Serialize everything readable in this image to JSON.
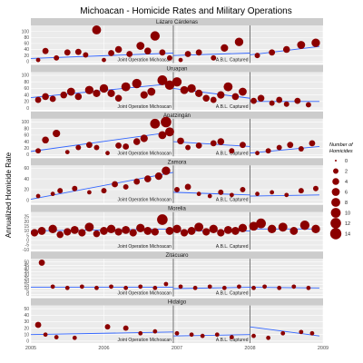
{
  "chart_data": {
    "type": "scatter",
    "title": "Michoacan - Homicide Rates and Military Operations",
    "ylabel": "Annualized Homicide Rate",
    "xlabel": "",
    "x_ticks": [
      "2005",
      "2006",
      "2007",
      "2008",
      "2009"
    ],
    "xlim": [
      2005.0,
      2009.0
    ],
    "grid": true,
    "events": [
      {
        "x": 2006.95,
        "label": "Joint Operation Michoacan"
      },
      {
        "x": 2008.0,
        "label": "A.B.L. Captured"
      }
    ],
    "legend": {
      "title": "Number of Homicides",
      "position": "right",
      "sizes": [
        0,
        2,
        4,
        6,
        8,
        10,
        12,
        14
      ]
    },
    "panels": [
      {
        "name": "Lázaro Cárdenas",
        "ylim": [
          -5,
          120
        ],
        "yticks": [
          0,
          20,
          40,
          60,
          80,
          100
        ],
        "points": [
          [
            2005.1,
            5,
            1
          ],
          [
            2005.2,
            35,
            3
          ],
          [
            2005.35,
            12,
            2
          ],
          [
            2005.5,
            30,
            3
          ],
          [
            2005.65,
            32,
            3
          ],
          [
            2005.75,
            22,
            2
          ],
          [
            2005.9,
            105,
            8
          ],
          [
            2006.0,
            5,
            1
          ],
          [
            2006.1,
            28,
            3
          ],
          [
            2006.2,
            40,
            4
          ],
          [
            2006.35,
            25,
            3
          ],
          [
            2006.5,
            52,
            6
          ],
          [
            2006.6,
            35,
            4
          ],
          [
            2006.7,
            85,
            9
          ],
          [
            2006.8,
            30,
            3
          ],
          [
            2006.9,
            12,
            2
          ],
          [
            2007.05,
            5,
            1
          ],
          [
            2007.15,
            25,
            3
          ],
          [
            2007.3,
            30,
            3
          ],
          [
            2007.5,
            12,
            2
          ],
          [
            2007.65,
            45,
            5
          ],
          [
            2007.85,
            65,
            7
          ],
          [
            2008.1,
            20,
            2
          ],
          [
            2008.3,
            30,
            3
          ],
          [
            2008.5,
            40,
            4
          ],
          [
            2008.7,
            55,
            6
          ],
          [
            2008.9,
            62,
            7
          ]
        ],
        "fits": [
          [
            2005.0,
            10,
            2006.95,
            28
          ],
          [
            2006.95,
            20,
            2008.0,
            28
          ],
          [
            2008.0,
            22,
            2008.95,
            50
          ]
        ]
      },
      {
        "name": "Uruapan",
        "ylim": [
          -5,
          110
        ],
        "yticks": [
          0,
          20,
          40,
          60,
          80,
          100
        ],
        "points": [
          [
            2005.1,
            25,
            3
          ],
          [
            2005.2,
            35,
            4
          ],
          [
            2005.3,
            28,
            3
          ],
          [
            2005.45,
            40,
            4
          ],
          [
            2005.55,
            50,
            6
          ],
          [
            2005.65,
            35,
            4
          ],
          [
            2005.8,
            55,
            7
          ],
          [
            2005.9,
            45,
            5
          ],
          [
            2006.0,
            60,
            7
          ],
          [
            2006.1,
            45,
            5
          ],
          [
            2006.2,
            30,
            4
          ],
          [
            2006.3,
            65,
            8
          ],
          [
            2006.45,
            75,
            9
          ],
          [
            2006.55,
            40,
            5
          ],
          [
            2006.65,
            50,
            6
          ],
          [
            2006.8,
            85,
            10
          ],
          [
            2006.9,
            70,
            9
          ],
          [
            2007.0,
            80,
            9
          ],
          [
            2007.1,
            55,
            6
          ],
          [
            2007.2,
            60,
            7
          ],
          [
            2007.3,
            45,
            5
          ],
          [
            2007.4,
            30,
            4
          ],
          [
            2007.5,
            25,
            3
          ],
          [
            2007.6,
            40,
            5
          ],
          [
            2007.7,
            65,
            8
          ],
          [
            2007.8,
            35,
            4
          ],
          [
            2007.9,
            50,
            6
          ],
          [
            2008.05,
            22,
            3
          ],
          [
            2008.15,
            30,
            4
          ],
          [
            2008.3,
            15,
            2
          ],
          [
            2008.4,
            25,
            3
          ],
          [
            2008.5,
            12,
            2
          ],
          [
            2008.65,
            22,
            3
          ],
          [
            2008.8,
            10,
            2
          ]
        ],
        "fits": [
          [
            2005.0,
            32,
            2006.95,
            75
          ],
          [
            2006.95,
            60,
            2008.0,
            30
          ],
          [
            2008.0,
            20,
            2008.95,
            20
          ]
        ]
      },
      {
        "name": "Apatzingán",
        "ylim": [
          -5,
          110
        ],
        "yticks": [
          0,
          20,
          40,
          60,
          80,
          100
        ],
        "points": [
          [
            2005.1,
            12,
            2
          ],
          [
            2005.2,
            45,
            4
          ],
          [
            2005.35,
            65,
            5
          ],
          [
            2005.5,
            8,
            1
          ],
          [
            2005.65,
            22,
            2
          ],
          [
            2005.8,
            30,
            3
          ],
          [
            2005.9,
            22,
            2
          ],
          [
            2006.05,
            5,
            1
          ],
          [
            2006.2,
            28,
            3
          ],
          [
            2006.3,
            25,
            3
          ],
          [
            2006.45,
            40,
            4
          ],
          [
            2006.55,
            50,
            5
          ],
          [
            2006.7,
            95,
            10
          ],
          [
            2006.8,
            60,
            6
          ],
          [
            2006.85,
            100,
            12
          ],
          [
            2006.9,
            70,
            8
          ],
          [
            2007.05,
            42,
            4
          ],
          [
            2007.15,
            22,
            2
          ],
          [
            2007.3,
            28,
            3
          ],
          [
            2007.5,
            35,
            3
          ],
          [
            2007.6,
            40,
            4
          ],
          [
            2007.75,
            12,
            2
          ],
          [
            2007.9,
            30,
            3
          ],
          [
            2008.1,
            5,
            1
          ],
          [
            2008.25,
            12,
            2
          ],
          [
            2008.4,
            22,
            2
          ],
          [
            2008.55,
            30,
            3
          ],
          [
            2008.7,
            18,
            2
          ],
          [
            2008.85,
            35,
            3
          ]
        ],
        "fits": [
          [
            2005.0,
            10,
            2006.95,
            70
          ],
          [
            2006.95,
            40,
            2008.0,
            25
          ],
          [
            2008.0,
            5,
            2008.95,
            25
          ]
        ]
      },
      {
        "name": "Zamora",
        "ylim": [
          -5,
          65
        ],
        "yticks": [
          0,
          20,
          40,
          60
        ],
        "points": [
          [
            2005.1,
            8,
            1
          ],
          [
            2005.3,
            12,
            1
          ],
          [
            2005.4,
            18,
            2
          ],
          [
            2005.6,
            22,
            2
          ],
          [
            2005.8,
            15,
            1
          ],
          [
            2006.0,
            18,
            2
          ],
          [
            2006.15,
            30,
            3
          ],
          [
            2006.3,
            25,
            2
          ],
          [
            2006.45,
            35,
            3
          ],
          [
            2006.6,
            40,
            4
          ],
          [
            2006.75,
            45,
            5
          ],
          [
            2006.85,
            55,
            7
          ],
          [
            2007.0,
            20,
            2
          ],
          [
            2007.15,
            25,
            3
          ],
          [
            2007.3,
            12,
            1
          ],
          [
            2007.45,
            8,
            1
          ],
          [
            2007.6,
            15,
            2
          ],
          [
            2007.75,
            10,
            1
          ],
          [
            2007.9,
            20,
            2
          ],
          [
            2008.1,
            12,
            1
          ],
          [
            2008.3,
            15,
            1
          ],
          [
            2008.5,
            10,
            1
          ],
          [
            2008.7,
            18,
            2
          ],
          [
            2008.9,
            22,
            2
          ]
        ],
        "fits": [
          [
            2005.0,
            2,
            2006.95,
            52
          ],
          [
            2006.95,
            15,
            2008.0,
            10
          ],
          [
            2008.0,
            8,
            2008.95,
            10
          ]
        ]
      },
      {
        "name": "Morelia",
        "ylim": [
          -10,
          30
        ],
        "yticks": [
          -10,
          -5,
          0,
          5,
          10,
          15,
          20,
          25
        ],
        "points": [
          [
            2005.05,
            8,
            5
          ],
          [
            2005.15,
            10,
            6
          ],
          [
            2005.3,
            12,
            7
          ],
          [
            2005.4,
            6,
            4
          ],
          [
            2005.5,
            9,
            5
          ],
          [
            2005.6,
            11,
            6
          ],
          [
            2005.7,
            8,
            5
          ],
          [
            2005.8,
            14,
            8
          ],
          [
            2005.9,
            7,
            4
          ],
          [
            2006.0,
            10,
            6
          ],
          [
            2006.1,
            12,
            7
          ],
          [
            2006.2,
            9,
            5
          ],
          [
            2006.3,
            11,
            6
          ],
          [
            2006.4,
            8,
            5
          ],
          [
            2006.5,
            13,
            7
          ],
          [
            2006.6,
            10,
            6
          ],
          [
            2006.7,
            9,
            5
          ],
          [
            2006.8,
            22,
            12
          ],
          [
            2006.9,
            10,
            6
          ],
          [
            2007.0,
            12,
            7
          ],
          [
            2007.1,
            8,
            5
          ],
          [
            2007.2,
            10,
            6
          ],
          [
            2007.3,
            14,
            8
          ],
          [
            2007.4,
            9,
            5
          ],
          [
            2007.5,
            12,
            7
          ],
          [
            2007.6,
            8,
            5
          ],
          [
            2007.7,
            11,
            6
          ],
          [
            2007.8,
            10,
            6
          ],
          [
            2007.9,
            13,
            7
          ],
          [
            2008.05,
            15,
            8
          ],
          [
            2008.15,
            18,
            10
          ],
          [
            2008.3,
            12,
            7
          ],
          [
            2008.45,
            14,
            8
          ],
          [
            2008.6,
            10,
            6
          ],
          [
            2008.75,
            16,
            9
          ],
          [
            2008.9,
            12,
            7
          ]
        ],
        "fits": [
          [
            2005.0,
            10,
            2006.95,
            12
          ],
          [
            2006.95,
            10,
            2008.0,
            10
          ],
          [
            2008.0,
            12,
            2008.95,
            12
          ]
        ]
      },
      {
        "name": "Zitácuaro",
        "ylim": [
          -3,
          55
        ],
        "yticks": [
          0,
          5,
          10,
          15,
          20,
          25,
          30,
          35,
          40,
          45,
          50
        ],
        "points": [
          [
            2005.15,
            49,
            3
          ],
          [
            2005.3,
            12,
            1
          ],
          [
            2005.5,
            10,
            1
          ],
          [
            2005.7,
            12,
            1
          ],
          [
            2005.9,
            10,
            1
          ],
          [
            2006.1,
            12,
            1
          ],
          [
            2006.3,
            10,
            1
          ],
          [
            2006.5,
            12,
            1
          ],
          [
            2006.7,
            10,
            1
          ],
          [
            2006.85,
            16,
            1
          ],
          [
            2007.05,
            12,
            1
          ],
          [
            2007.25,
            10,
            1
          ],
          [
            2007.45,
            12,
            1
          ],
          [
            2007.65,
            10,
            1
          ],
          [
            2007.85,
            12,
            1
          ],
          [
            2008.05,
            10,
            1
          ],
          [
            2008.2,
            12,
            1
          ],
          [
            2008.4,
            10,
            1
          ],
          [
            2008.6,
            12,
            1
          ],
          [
            2008.8,
            10,
            1
          ]
        ],
        "fits": [
          [
            2005.0,
            11,
            2006.95,
            11
          ],
          [
            2006.95,
            9,
            2008.0,
            11
          ],
          [
            2008.0,
            11,
            2008.95,
            10
          ]
        ]
      },
      {
        "name": "Hidalgo",
        "ylim": [
          -3,
          55
        ],
        "yticks": [
          0,
          10,
          20,
          30,
          40,
          50
        ],
        "points": [
          [
            2005.1,
            25,
            3
          ],
          [
            2005.2,
            10,
            1
          ],
          [
            2005.35,
            6,
            1
          ],
          [
            2005.6,
            5,
            1
          ],
          [
            2006.05,
            22,
            2
          ],
          [
            2006.3,
            20,
            2
          ],
          [
            2006.5,
            12,
            1
          ],
          [
            2006.7,
            15,
            1
          ],
          [
            2007.0,
            12,
            1
          ],
          [
            2007.2,
            10,
            1
          ],
          [
            2007.35,
            8,
            1
          ],
          [
            2007.55,
            10,
            1
          ],
          [
            2007.75,
            6,
            1
          ],
          [
            2008.05,
            8,
            1
          ],
          [
            2008.25,
            5,
            1
          ],
          [
            2008.45,
            12,
            1
          ],
          [
            2008.7,
            14,
            1
          ],
          [
            2008.85,
            12,
            1
          ]
        ],
        "fits": [
          [
            2005.0,
            10,
            2006.95,
            14
          ],
          [
            2006.95,
            8,
            2008.0,
            10
          ],
          [
            2008.0,
            22,
            2008.95,
            8
          ]
        ]
      }
    ]
  },
  "colors": {
    "point": "#8b0000",
    "fit": "#3366ff",
    "panel_bg": "#ebebeb",
    "strip_bg": "#cccccc",
    "grid": "#ffffff",
    "vline": "#555555"
  }
}
